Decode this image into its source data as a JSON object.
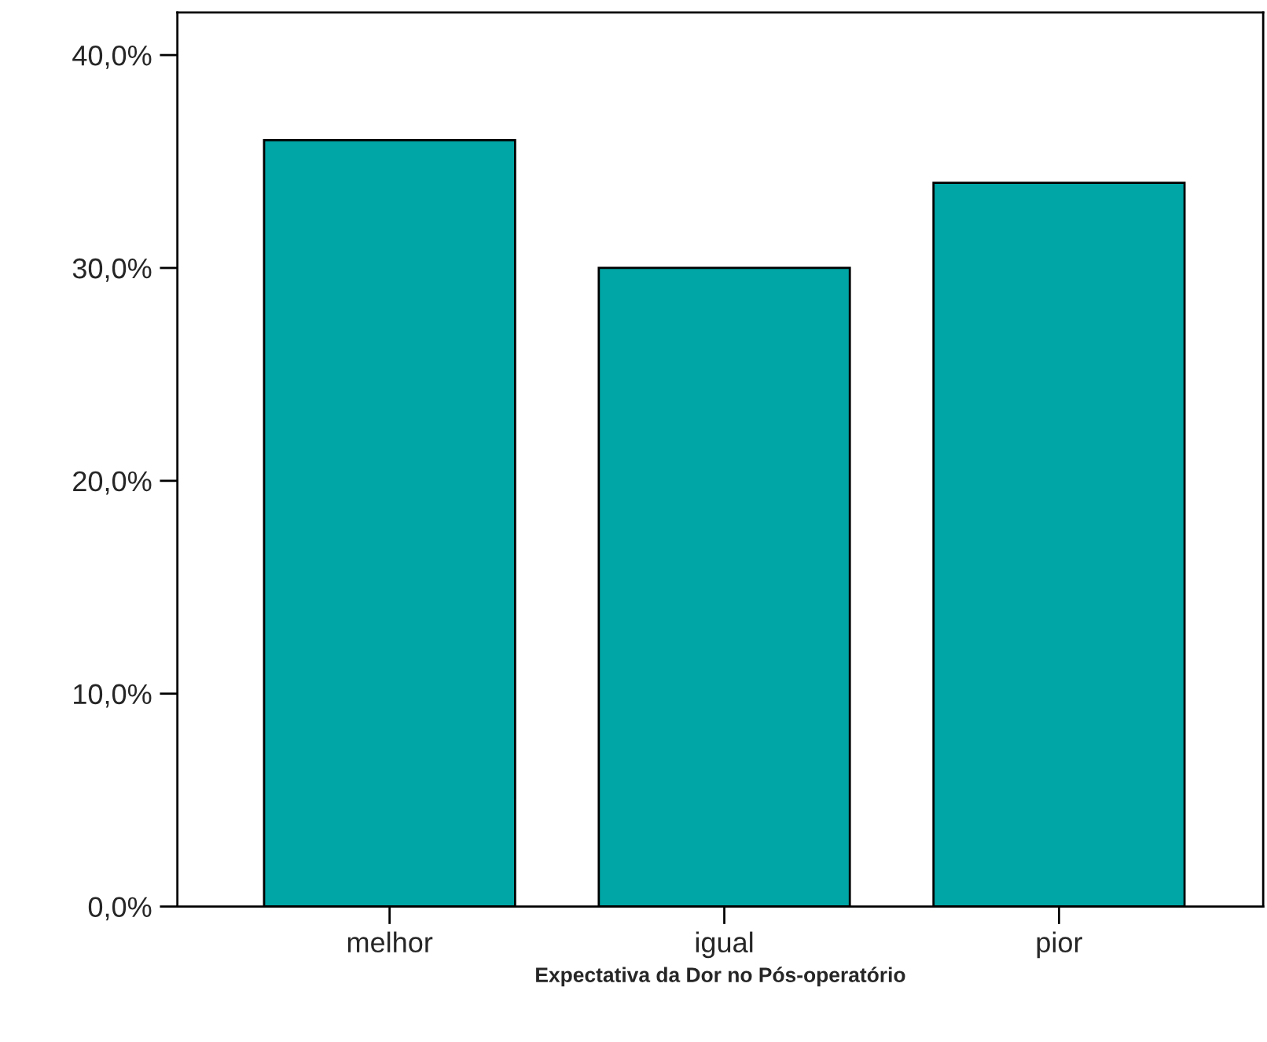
{
  "chart_data": {
    "type": "bar",
    "xlabel": "Expectativa da Dor no Pós-operatório",
    "categories": [
      "melhor",
      "igual",
      "pior"
    ],
    "values": [
      36,
      30,
      34
    ],
    "color": "#00a5a5",
    "ylim": [
      0,
      42
    ],
    "yticks": [
      {
        "value": 0,
        "label": "0,0%"
      },
      {
        "value": 10,
        "label": "10,0%"
      },
      {
        "value": 20,
        "label": "20,0%"
      },
      {
        "value": 30,
        "label": "30,0%"
      },
      {
        "value": 40,
        "label": "40,0%"
      }
    ],
    "grid": false
  }
}
